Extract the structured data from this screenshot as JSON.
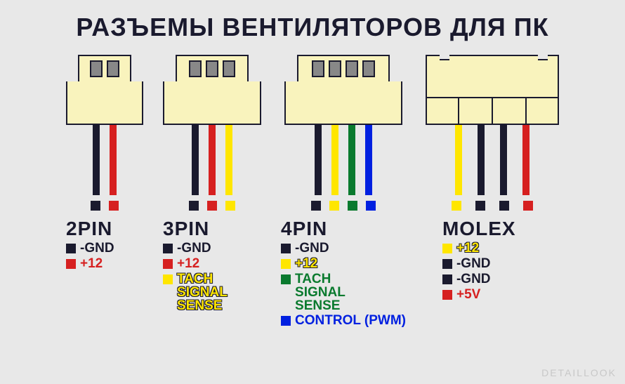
{
  "title": "РАЗЪЕМЫ ВЕНТИЛЯТОРОВ ДЛЯ ПК",
  "watermark": "DETAILLOOK",
  "colors": {
    "black": "#1a1a2e",
    "red": "#d62020",
    "yellow": "#ffe600",
    "green": "#0a7a2e",
    "blue": "#0020e0",
    "housing": "#f9f3bd",
    "hole": "#888888",
    "bg": "#e8e8e8"
  },
  "connectors": [
    {
      "name": "2PIN",
      "top_width": 76,
      "body_width": 110,
      "wires": [
        "#1a1a2e",
        "#d62020"
      ],
      "terminals": [
        "#1a1a2e",
        "#d62020"
      ],
      "legend": [
        {
          "color": "#1a1a2e",
          "text": "-GND",
          "text_color": "#1a1a2e"
        },
        {
          "color": "#d62020",
          "text": "+12",
          "text_color": "#d62020"
        }
      ]
    },
    {
      "name": "3PIN",
      "top_width": 104,
      "body_width": 140,
      "wires": [
        "#1a1a2e",
        "#d62020",
        "#ffe600"
      ],
      "terminals": [
        "#1a1a2e",
        "#d62020",
        "#ffe600"
      ],
      "legend": [
        {
          "color": "#1a1a2e",
          "text": "-GND",
          "text_color": "#1a1a2e"
        },
        {
          "color": "#d62020",
          "text": "+12",
          "text_color": "#d62020"
        },
        {
          "color": "#ffe600",
          "text": "TACH\nSIGNAL\nSENSE",
          "text_color": "#ffe600",
          "outline": true
        }
      ]
    },
    {
      "name": "4PIN",
      "top_width": 132,
      "body_width": 168,
      "wires": [
        "#1a1a2e",
        "#ffe600",
        "#0a7a2e",
        "#0020e0"
      ],
      "terminals": [
        "#1a1a2e",
        "#ffe600",
        "#0a7a2e",
        "#0020e0"
      ],
      "legend": [
        {
          "color": "#1a1a2e",
          "text": "-GND",
          "text_color": "#1a1a2e"
        },
        {
          "color": "#ffe600",
          "text": "+12",
          "text_color": "#ffe600",
          "outline": true
        },
        {
          "color": "#0a7a2e",
          "text": "TACH\nSIGNAL\nSENSE",
          "text_color": "#0a7a2e"
        },
        {
          "color": "#0020e0",
          "text": "CONTROL (PWM)",
          "text_color": "#0020e0"
        }
      ]
    },
    {
      "name": "MOLEX",
      "molex": true,
      "wires": [
        "#ffe600",
        "#1a1a2e",
        "#1a1a2e",
        "#d62020"
      ],
      "terminals": [
        "#ffe600",
        "#1a1a2e",
        "#1a1a2e",
        "#d62020"
      ],
      "legend": [
        {
          "color": "#ffe600",
          "text": "+12",
          "text_color": "#ffe600",
          "outline": true
        },
        {
          "color": "#1a1a2e",
          "text": "-GND",
          "text_color": "#1a1a2e"
        },
        {
          "color": "#1a1a2e",
          "text": "-GND",
          "text_color": "#1a1a2e"
        },
        {
          "color": "#d62020",
          "text": "+5V",
          "text_color": "#d62020"
        }
      ]
    }
  ]
}
